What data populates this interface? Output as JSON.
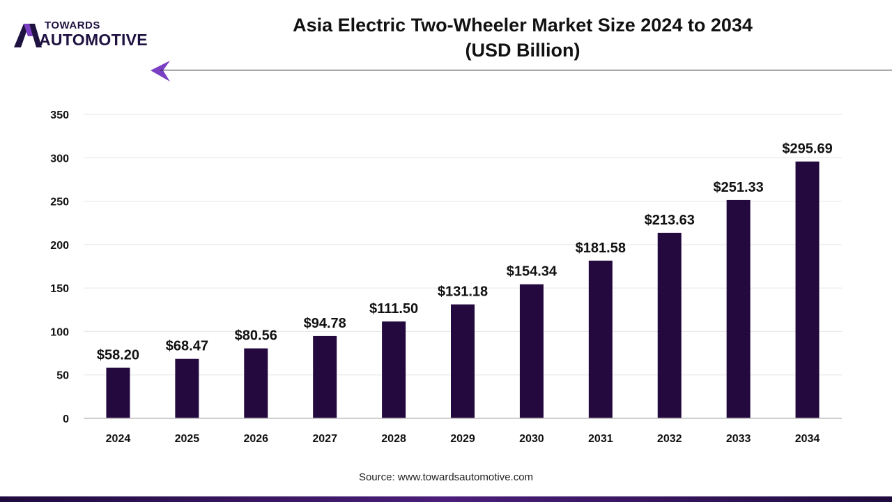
{
  "logo": {
    "top": "TOWARDS",
    "bottom": "AUTOMOTIVE"
  },
  "title": {
    "line1": "Asia Electric Two-Wheeler Market Size 2024 to 2034",
    "line2": "(USD Billion)"
  },
  "source": "Source: www.towardsautomotive.com",
  "colors": {
    "bar": "#24093f",
    "accent": "#7b3fc4",
    "grid": "#e6e6e6"
  },
  "chart_data": {
    "type": "bar",
    "categories": [
      "2024",
      "2025",
      "2026",
      "2027",
      "2028",
      "2029",
      "2030",
      "2031",
      "2032",
      "2033",
      "2034"
    ],
    "values": [
      58.2,
      68.47,
      80.56,
      94.78,
      111.5,
      131.18,
      154.34,
      181.58,
      213.63,
      251.33,
      295.69
    ],
    "labels": [
      "$58.20",
      "$68.47",
      "$80.56",
      "$94.78",
      "$111.50",
      "$131.18",
      "$154.34",
      "$181.58",
      "$213.63",
      "$251.33",
      "$295.69"
    ],
    "yticks": [
      0,
      50,
      100,
      150,
      200,
      250,
      300,
      350
    ],
    "ylim": [
      0,
      350
    ],
    "grid": true,
    "legend": false
  }
}
